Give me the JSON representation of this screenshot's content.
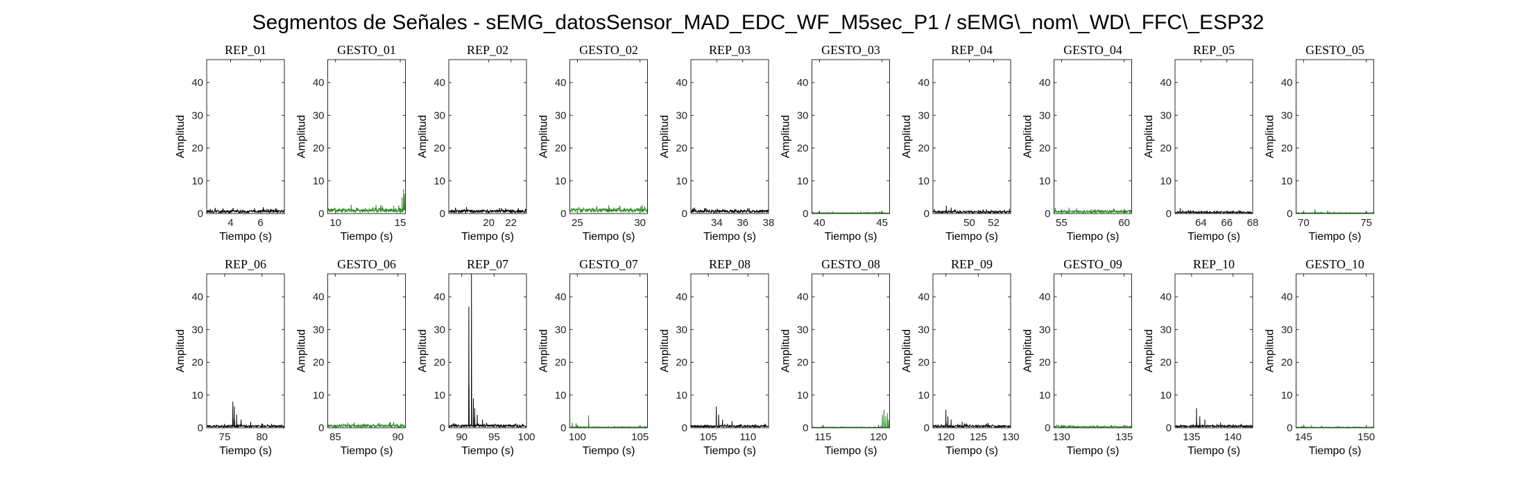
{
  "figure": {
    "title": "Segmentos de Señales - sEMG_datosSensor_MAD_EDC_WF_M5sec_P1 / sEMG\\_nom\\_WD\\_FFC\\_ESP32",
    "colors": {
      "rep": "#000000",
      "gesto": "#2a8a22"
    }
  },
  "chart_data": [
    {
      "type": "line",
      "title": "REP_01",
      "kind": "rep",
      "xlabel": "Tiempo (s)",
      "ylabel": "Amplitud",
      "xlim": [
        2.4,
        7.6
      ],
      "ylim": [
        0,
        47
      ],
      "xticks": [
        4,
        6
      ],
      "yticks": [
        0,
        10,
        20,
        30,
        40
      ],
      "baseline": 0.6,
      "noise": 0.8,
      "spikes": [
        [
          5.6,
          1.6
        ],
        [
          7.0,
          1.5
        ]
      ]
    },
    {
      "type": "line",
      "title": "GESTO_01",
      "kind": "gesto",
      "xlabel": "Tiempo (s)",
      "ylabel": "Amplitud",
      "xlim": [
        9.4,
        15.4
      ],
      "ylim": [
        0,
        47
      ],
      "xticks": [
        10,
        15
      ],
      "yticks": [
        0,
        10,
        20,
        30,
        40
      ],
      "baseline": 1.0,
      "noise": 1.2,
      "spikes": [
        [
          15.15,
          5.0
        ],
        [
          15.25,
          7.5
        ],
        [
          15.33,
          6.0
        ],
        [
          13.6,
          2.5
        ]
      ]
    },
    {
      "type": "line",
      "title": "REP_02",
      "kind": "rep",
      "xlabel": "Tiempo (s)",
      "ylabel": "Amplitud",
      "xlim": [
        16.4,
        23.4
      ],
      "ylim": [
        0,
        47
      ],
      "xticks": [
        20,
        22
      ],
      "yticks": [
        0,
        10,
        20,
        30,
        40
      ],
      "baseline": 0.6,
      "noise": 0.9,
      "spikes": [
        [
          18.0,
          2.0
        ],
        [
          21.5,
          1.6
        ]
      ]
    },
    {
      "type": "line",
      "title": "GESTO_02",
      "kind": "gesto",
      "xlabel": "Tiempo (s)",
      "ylabel": "Amplitud",
      "xlim": [
        24.4,
        30.6
      ],
      "ylim": [
        0,
        47
      ],
      "xticks": [
        25,
        30
      ],
      "yticks": [
        0,
        10,
        20,
        30,
        40
      ],
      "baseline": 1.1,
      "noise": 1.2,
      "spikes": [
        [
          27.5,
          2.5
        ],
        [
          28.4,
          2.3
        ]
      ]
    },
    {
      "type": "line",
      "title": "REP_03",
      "kind": "rep",
      "xlabel": "Tiempo (s)",
      "ylabel": "Amplitud",
      "xlim": [
        32.0,
        38.0
      ],
      "ylim": [
        0,
        47
      ],
      "xticks": [
        34,
        36,
        38
      ],
      "yticks": [
        0,
        10,
        20,
        30,
        40
      ],
      "baseline": 0.7,
      "noise": 0.8,
      "spikes": [
        [
          32.3,
          1.8
        ],
        [
          36.5,
          1.7
        ]
      ]
    },
    {
      "type": "line",
      "title": "GESTO_03",
      "kind": "gesto",
      "xlabel": "Tiempo (s)",
      "ylabel": "Amplitud",
      "xlim": [
        39.4,
        45.6
      ],
      "ylim": [
        0,
        47
      ],
      "xticks": [
        40,
        45
      ],
      "yticks": [
        0,
        10,
        20,
        30,
        40
      ],
      "baseline": 0.2,
      "noise": 0.2,
      "spikes": []
    },
    {
      "type": "line",
      "title": "REP_04",
      "kind": "rep",
      "xlabel": "Tiempo (s)",
      "ylabel": "Amplitud",
      "xlim": [
        47.0,
        53.4
      ],
      "ylim": [
        0,
        47
      ],
      "xticks": [
        50,
        52
      ],
      "yticks": [
        0,
        10,
        20,
        30,
        40
      ],
      "baseline": 0.4,
      "noise": 0.6,
      "spikes": [
        [
          48.1,
          2.4
        ],
        [
          48.5,
          1.8
        ]
      ]
    },
    {
      "type": "line",
      "title": "GESTO_04",
      "kind": "gesto",
      "xlabel": "Tiempo (s)",
      "ylabel": "Amplitud",
      "xlim": [
        54.4,
        60.6
      ],
      "ylim": [
        0,
        47
      ],
      "xticks": [
        55,
        60
      ],
      "yticks": [
        0,
        10,
        20,
        30,
        40
      ],
      "baseline": 0.5,
      "noise": 0.8,
      "spikes": [
        [
          55.6,
          1.8
        ],
        [
          56.2,
          1.6
        ]
      ]
    },
    {
      "type": "line",
      "title": "REP_05",
      "kind": "rep",
      "xlabel": "Tiempo (s)",
      "ylabel": "Amplitud",
      "xlim": [
        62.0,
        68.0
      ],
      "ylim": [
        0,
        47
      ],
      "xticks": [
        64,
        66,
        68
      ],
      "yticks": [
        0,
        10,
        20,
        30,
        40
      ],
      "baseline": 0.3,
      "noise": 0.5,
      "spikes": [
        [
          62.4,
          1.6
        ],
        [
          63.2,
          1.0
        ]
      ]
    },
    {
      "type": "line",
      "title": "GESTO_05",
      "kind": "gesto",
      "xlabel": "Tiempo (s)",
      "ylabel": "Amplitud",
      "xlim": [
        69.4,
        75.6
      ],
      "ylim": [
        0,
        47
      ],
      "xticks": [
        70,
        75
      ],
      "yticks": [
        0,
        10,
        20,
        30,
        40
      ],
      "baseline": 0.2,
      "noise": 0.2,
      "spikes": [
        [
          70.9,
          1.3
        ],
        [
          71.9,
          0.9
        ]
      ]
    },
    {
      "type": "line",
      "title": "REP_06",
      "kind": "rep",
      "xlabel": "Tiempo (s)",
      "ylabel": "Amplitud",
      "xlim": [
        72.6,
        83.0
      ],
      "ylim": [
        0,
        47
      ],
      "xticks": [
        75,
        80
      ],
      "yticks": [
        0,
        10,
        20,
        30,
        40
      ],
      "baseline": 0.4,
      "noise": 0.6,
      "spikes": [
        [
          76.1,
          8.0
        ],
        [
          76.3,
          6.5
        ],
        [
          76.6,
          4.0
        ],
        [
          77.2,
          2.5
        ],
        [
          78.5,
          1.8
        ]
      ]
    },
    {
      "type": "line",
      "title": "GESTO_06",
      "kind": "gesto",
      "xlabel": "Tiempo (s)",
      "ylabel": "Amplitud",
      "xlim": [
        84.4,
        90.6
      ],
      "ylim": [
        0,
        47
      ],
      "xticks": [
        85,
        90
      ],
      "yticks": [
        0,
        10,
        20,
        30,
        40
      ],
      "baseline": 0.5,
      "noise": 0.8,
      "spikes": [
        [
          86.0,
          1.6
        ],
        [
          88.5,
          1.5
        ]
      ]
    },
    {
      "type": "line",
      "title": "REP_07",
      "kind": "rep",
      "xlabel": "Tiempo (s)",
      "ylabel": "Amplitud",
      "xlim": [
        88.0,
        100.0
      ],
      "ylim": [
        0,
        47
      ],
      "xticks": [
        90,
        95,
        100
      ],
      "yticks": [
        0,
        10,
        20,
        30,
        40
      ],
      "baseline": 0.5,
      "noise": 0.8,
      "spikes": [
        [
          91.1,
          37.0
        ],
        [
          91.5,
          47.0
        ],
        [
          91.8,
          9.0
        ],
        [
          92.0,
          6.0
        ],
        [
          92.4,
          4.0
        ],
        [
          93.2,
          2.5
        ]
      ]
    },
    {
      "type": "line",
      "title": "GESTO_07",
      "kind": "gesto",
      "xlabel": "Tiempo (s)",
      "ylabel": "Amplitud",
      "xlim": [
        99.4,
        105.6
      ],
      "ylim": [
        0,
        47
      ],
      "xticks": [
        100,
        105
      ],
      "yticks": [
        0,
        10,
        20,
        30,
        40
      ],
      "baseline": 0.2,
      "noise": 0.2,
      "spikes": [
        [
          99.6,
          1.6
        ],
        [
          99.9,
          1.4
        ],
        [
          100.9,
          3.8
        ]
      ]
    },
    {
      "type": "line",
      "title": "REP_08",
      "kind": "rep",
      "xlabel": "Tiempo (s)",
      "ylabel": "Amplitud",
      "xlim": [
        102.8,
        112.6
      ],
      "ylim": [
        0,
        47
      ],
      "xticks": [
        105,
        110
      ],
      "yticks": [
        0,
        10,
        20,
        30,
        40
      ],
      "baseline": 0.4,
      "noise": 0.6,
      "spikes": [
        [
          106.0,
          6.5
        ],
        [
          106.3,
          4.0
        ],
        [
          106.8,
          2.5
        ],
        [
          108.0,
          2.0
        ]
      ]
    },
    {
      "type": "line",
      "title": "GESTO_08",
      "kind": "gesto",
      "xlabel": "Tiempo (s)",
      "ylabel": "Amplitud",
      "xlim": [
        114.0,
        121.0
      ],
      "ylim": [
        0,
        47
      ],
      "xticks": [
        115,
        120
      ],
      "yticks": [
        0,
        10,
        20,
        30,
        40
      ],
      "baseline": 0.1,
      "noise": 0.2,
      "spikes": [
        [
          120.35,
          4.0
        ],
        [
          120.5,
          5.5
        ],
        [
          120.65,
          3.5
        ],
        [
          120.8,
          4.5
        ],
        [
          120.9,
          2.5
        ]
      ]
    },
    {
      "type": "line",
      "title": "REP_09",
      "kind": "rep",
      "xlabel": "Tiempo (s)",
      "ylabel": "Amplitud",
      "xlim": [
        118.0,
        130.0
      ],
      "ylim": [
        0,
        47
      ],
      "xticks": [
        120,
        125,
        130
      ],
      "yticks": [
        0,
        10,
        20,
        30,
        40
      ],
      "baseline": 0.4,
      "noise": 0.6,
      "spikes": [
        [
          120.0,
          5.5
        ],
        [
          120.3,
          3.5
        ],
        [
          120.8,
          2.5
        ],
        [
          122.5,
          1.8
        ],
        [
          126.5,
          1.5
        ]
      ]
    },
    {
      "type": "line",
      "title": "GESTO_09",
      "kind": "gesto",
      "xlabel": "Tiempo (s)",
      "ylabel": "Amplitud",
      "xlim": [
        129.4,
        135.6
      ],
      "ylim": [
        0,
        47
      ],
      "xticks": [
        130,
        135
      ],
      "yticks": [
        0,
        10,
        20,
        30,
        40
      ],
      "baseline": 0.2,
      "noise": 0.4,
      "spikes": [
        [
          129.6,
          1.0
        ],
        [
          130.2,
          0.8
        ]
      ]
    },
    {
      "type": "line",
      "title": "REP_10",
      "kind": "rep",
      "xlabel": "Tiempo (s)",
      "ylabel": "Amplitud",
      "xlim": [
        133.0,
        142.4
      ],
      "ylim": [
        0,
        47
      ],
      "xticks": [
        135,
        140
      ],
      "yticks": [
        0,
        10,
        20,
        30,
        40
      ],
      "baseline": 0.4,
      "noise": 0.6,
      "spikes": [
        [
          135.6,
          6.0
        ],
        [
          136.0,
          3.5
        ],
        [
          136.6,
          2.5
        ],
        [
          138.5,
          1.6
        ]
      ]
    },
    {
      "type": "line",
      "title": "GESTO_10",
      "kind": "gesto",
      "xlabel": "Tiempo (s)",
      "ylabel": "Amplitud",
      "xlim": [
        144.4,
        150.6
      ],
      "ylim": [
        0,
        47
      ],
      "xticks": [
        145,
        150
      ],
      "yticks": [
        0,
        10,
        20,
        30,
        40
      ],
      "baseline": 0.1,
      "noise": 0.2,
      "spikes": [
        [
          145.6,
          0.8
        ]
      ]
    }
  ]
}
